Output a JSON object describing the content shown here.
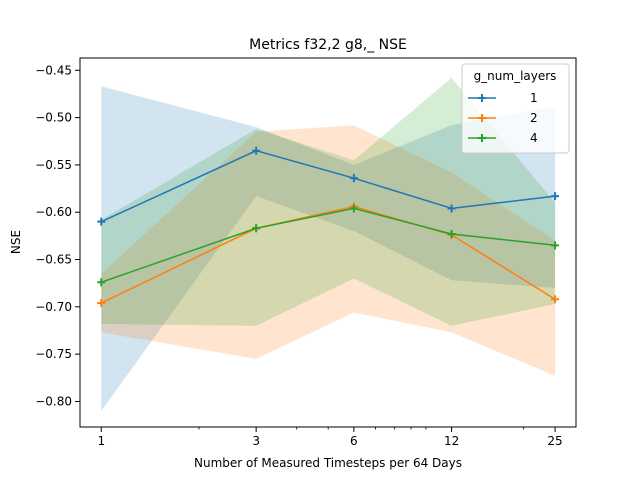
{
  "chart_data": {
    "type": "line",
    "title": "Metrics f32,2 g8,_ NSE",
    "xlabel": "Number of Measured Timesteps per 64 Days",
    "ylabel": "NSE",
    "x_scale": "log",
    "x": [
      1,
      3,
      6,
      12,
      25
    ],
    "x_ticks": [
      "1",
      "3",
      "6",
      "12",
      "25"
    ],
    "y_ticks": [
      "−0.45",
      "−0.50",
      "−0.55",
      "−0.60",
      "−0.65",
      "−0.70",
      "−0.75",
      "−0.80"
    ],
    "y_tick_values": [
      -0.45,
      -0.5,
      -0.55,
      -0.6,
      -0.65,
      -0.7,
      -0.75,
      -0.8
    ],
    "ylim": [
      -0.827,
      -0.437
    ],
    "xlim": [
      0.86,
      29.0
    ],
    "grid": false,
    "legend": {
      "title": "g_num_layers",
      "placement": "top-right"
    },
    "series": [
      {
        "name": "1",
        "color": "#1f77b4",
        "values": [
          -0.61,
          -0.535,
          -0.564,
          -0.596,
          -0.583
        ],
        "band_low": [
          -0.81,
          -0.583,
          -0.62,
          -0.672,
          -0.68
        ],
        "band_high": [
          -0.467,
          -0.51,
          -0.55,
          -0.508,
          -0.488
        ]
      },
      {
        "name": "2",
        "color": "#ff7f0e",
        "values": [
          -0.696,
          -0.617,
          -0.594,
          -0.624,
          -0.692
        ],
        "band_low": [
          -0.727,
          -0.755,
          -0.706,
          -0.727,
          -0.773
        ],
        "band_high": [
          -0.665,
          -0.515,
          -0.508,
          -0.558,
          -0.63
        ]
      },
      {
        "name": "4",
        "color": "#2ca02c",
        "values": [
          -0.674,
          -0.617,
          -0.596,
          -0.623,
          -0.635
        ],
        "band_low": [
          -0.718,
          -0.72,
          -0.67,
          -0.72,
          -0.697
        ],
        "band_high": [
          -0.608,
          -0.512,
          -0.545,
          -0.458,
          -0.59
        ]
      }
    ]
  }
}
